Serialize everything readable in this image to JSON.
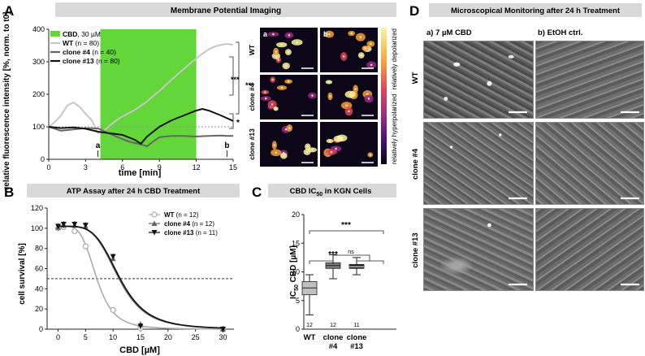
{
  "panels": {
    "A": {
      "letter": "A",
      "header": "Membrane Potential Imaging",
      "legend": [
        {
          "label": "CBD",
          "suffix": ", 30 µM",
          "color": "#63d63a",
          "type": "box"
        },
        {
          "label": "WT",
          "suffix": " (n = 80)",
          "color": "#c6c6c6",
          "type": "line"
        },
        {
          "label": "clone #4",
          "suffix": " (n = 40)",
          "color": "#666666",
          "type": "line"
        },
        {
          "label": "clone #13",
          "suffix": " (n = 80)",
          "color": "#111111",
          "type": "line"
        }
      ],
      "markers": [
        {
          "label": "a",
          "x": 4
        },
        {
          "label": "b",
          "x": 14.5
        }
      ],
      "significance": [
        "***",
        "***",
        "*"
      ],
      "images": {
        "col_labels": [
          "a",
          "b"
        ],
        "row_labels": [
          "WT",
          "clone #4",
          "clone #13"
        ],
        "colorbar_top": "relatively depolarized",
        "colorbar_bottom": "relatively hyperpolarized",
        "colormap": [
          "#fbf4a0",
          "#f7a13a",
          "#e0445a",
          "#9a2a86",
          "#3b0f70",
          "#07040f"
        ]
      }
    },
    "B": {
      "letter": "B",
      "header": "ATP Assay after 24 h CBD Treatment",
      "legend": [
        {
          "label": "WT",
          "suffix": " (n = 12)",
          "color": "#aaaaaa",
          "marker": "circle"
        },
        {
          "label": "clone #4",
          "suffix": " (n = 12)",
          "color": "#666666",
          "marker": "triangle-up"
        },
        {
          "label": "clone #13",
          "suffix": " (n = 11)",
          "color": "#111111",
          "marker": "triangle-down"
        }
      ]
    },
    "C": {
      "letter": "C",
      "header_main": "CBD IC",
      "header_sub": "50",
      "header_tail": " in KGN Cells",
      "ns": "ns",
      "sig": [
        "***",
        "***"
      ],
      "n_labels": [
        "12",
        "12",
        "11"
      ]
    },
    "D": {
      "letter": "D",
      "header": "Microscopical Monitoring after 24 h Treatment",
      "col_labels": [
        "a) 7 µM CBD",
        "b) EtOH ctrl."
      ],
      "row_labels": [
        "WT",
        "clone #4",
        "clone #13"
      ]
    }
  },
  "chart_data": [
    {
      "type": "line",
      "title": "",
      "xlabel": "time [min]",
      "ylabel": "relative fluorescence intensity [%, norm. to t0]",
      "xlim": [
        0,
        15
      ],
      "ylim": [
        0,
        400
      ],
      "xticks": [
        0,
        3,
        6,
        9,
        12,
        15
      ],
      "yticks": [
        0,
        100,
        200,
        300,
        400
      ],
      "shaded_region": {
        "label": "CBD, 30 µM",
        "x": [
          4.2,
          12
        ]
      },
      "series": [
        {
          "name": "WT (n = 80)",
          "color": "#c6c6c6",
          "x": [
            0,
            0.5,
            1,
            1.5,
            2,
            2.5,
            3,
            3.5,
            4,
            4.5,
            5,
            5.5,
            6,
            6.5,
            7,
            7.5,
            8,
            8.5,
            9,
            9.5,
            10,
            10.5,
            11,
            11.5,
            12,
            12.5,
            13,
            13.5,
            14,
            14.5,
            15
          ],
          "values": [
            100,
            115,
            135,
            165,
            175,
            162,
            140,
            120,
            80,
            88,
            105,
            120,
            132,
            142,
            152,
            165,
            178,
            195,
            210,
            228,
            245,
            262,
            278,
            295,
            310,
            325,
            338,
            347,
            352,
            355,
            352
          ]
        },
        {
          "name": "clone #4 (n = 40)",
          "color": "#666666",
          "x": [
            0,
            1,
            2,
            3,
            4,
            5,
            6,
            6.5,
            7,
            7.5,
            8,
            8.5,
            9,
            10,
            11,
            12,
            13,
            14,
            14.5,
            15
          ],
          "values": [
            100,
            88,
            92,
            96,
            95,
            78,
            62,
            55,
            50,
            46,
            40,
            55,
            68,
            72,
            72,
            70,
            72,
            73,
            72,
            72
          ]
        },
        {
          "name": "clone #13 (n = 80)",
          "color": "#111111",
          "x": [
            0,
            1,
            2,
            3,
            4,
            5,
            6,
            7,
            7.5,
            8,
            8.5,
            9,
            10,
            11,
            12,
            12.5,
            13,
            14,
            15
          ],
          "values": [
            100,
            96,
            98,
            94,
            85,
            80,
            75,
            60,
            48,
            70,
            85,
            100,
            120,
            135,
            150,
            155,
            150,
            135,
            118
          ]
        }
      ]
    },
    {
      "type": "scatter",
      "title": "",
      "xlabel": "CBD [µM]",
      "ylabel": "cell survival [%]",
      "xlim": [
        -2,
        32
      ],
      "ylim": [
        0,
        120
      ],
      "xticks": [
        0,
        5,
        10,
        15,
        20,
        25,
        30
      ],
      "yticks": [
        0,
        20,
        40,
        60,
        80,
        100,
        120
      ],
      "reference_line": 50,
      "series": [
        {
          "name": "WT (n = 12)",
          "color": "#aaaaaa",
          "marker": "circle",
          "x": [
            0,
            1,
            3,
            5,
            10,
            15,
            30
          ],
          "values": [
            100,
            101,
            97,
            82,
            19,
            1,
            0
          ],
          "ic50": 7.0
        },
        {
          "name": "clone #4 (n = 12)",
          "color": "#666666",
          "marker": "triangle-up",
          "x": [
            0,
            1,
            3,
            5,
            10,
            15,
            30
          ],
          "values": [
            101,
            103,
            103,
            102,
            70,
            5,
            0
          ],
          "ic50": 11.0
        },
        {
          "name": "clone #13 (n = 11)",
          "color": "#111111",
          "marker": "triangle-down",
          "x": [
            0,
            1,
            3,
            5,
            10,
            15,
            30
          ],
          "values": [
            102,
            104,
            104,
            103,
            72,
            3,
            0
          ],
          "ic50": 11.2
        }
      ]
    },
    {
      "type": "box",
      "title": "",
      "xlabel": "",
      "ylabel": "IC50 CBD [µM]",
      "ylim": [
        0,
        20
      ],
      "yticks": [
        0,
        5,
        10,
        15,
        20
      ],
      "categories": [
        "WT",
        "clone #4",
        "clone #13"
      ],
      "boxes": [
        {
          "name": "WT",
          "min": 2.5,
          "q1": 6.0,
          "median": 7.2,
          "q3": 8.3,
          "max": 9.5,
          "n": 12,
          "color": "#c0c0c0"
        },
        {
          "name": "clone #4",
          "min": 8.8,
          "q1": 10.6,
          "median": 11.1,
          "q3": 11.6,
          "max": 13.0,
          "n": 12,
          "color": "#7a7a7a"
        },
        {
          "name": "clone #13",
          "min": 9.5,
          "q1": 10.6,
          "median": 10.9,
          "q3": 11.3,
          "max": 12.5,
          "n": 11,
          "color": "#222222"
        }
      ]
    }
  ]
}
